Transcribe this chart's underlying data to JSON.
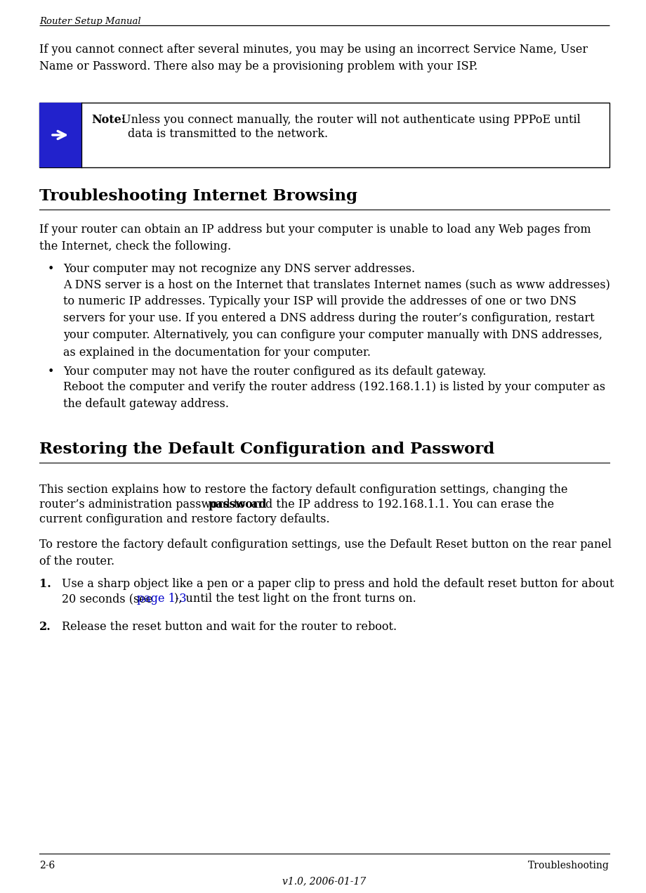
{
  "header_text": "Router Setup Manual",
  "footer_left": "2-6",
  "footer_right": "Troubleshooting",
  "footer_center": "v1.0, 2006-01-17",
  "bg_color": "#ffffff",
  "text_color": "#000000",
  "link_color": "#0000cc",
  "arrow_bg_color": "#2222cc",
  "intro_paragraph": "If you cannot connect after several minutes, you may be using an incorrect Service Name, User\nName or Password. There also may be a provisioning problem with your ISP.",
  "note_bold": "Note:",
  "note_rest": " Unless you connect manually, the router will not authenticate using PPPoE until\n        data is transmitted to the network.",
  "section1_title": "Troubleshooting Internet Browsing",
  "section1_intro": "If your router can obtain an IP address but your computer is unable to load any Web pages from\nthe Internet, check the following.",
  "bullet1_head": "Your computer may not recognize any DNS server addresses.",
  "bullet1_body": "A DNS server is a host on the Internet that translates Internet names (such as www addresses)\nto numeric IP addresses. Typically your ISP will provide the addresses of one or two DNS\nservers for your use. If you entered a DNS address during the router’s configuration, restart\nyour computer. Alternatively, you can configure your computer manually with DNS addresses,\nas explained in the documentation for your computer.",
  "bullet2_head": "Your computer may not have the router configured as its default gateway.",
  "bullet2_body": "Reboot the computer and verify the router address (192.168.1.1) is listed by your computer as\nthe default gateway address.",
  "section2_title": "Restoring the Default Configuration and Password",
  "section2_p1a": "This section explains how to restore the factory default configuration settings, changing the",
  "section2_p1b": "router’s administration password to ",
  "section2_bold": "password",
  "section2_p1c": " and the IP address to 192.168.1.1. You can erase the",
  "section2_p1d": "current configuration and restore factory defaults.",
  "section2_p2": "To restore the factory default configuration settings, use the Default Reset button on the rear panel\nof the router.",
  "step1_line1": "Use a sharp object like a pen or a paper clip to press and hold the default reset button for about",
  "step1_line2a": "20 seconds (see ",
  "step1_link": "page 1-3",
  "step1_line2b": "), until the test light on the front turns on.",
  "step2_text": "Release the reset button and wait for the router to reboot."
}
